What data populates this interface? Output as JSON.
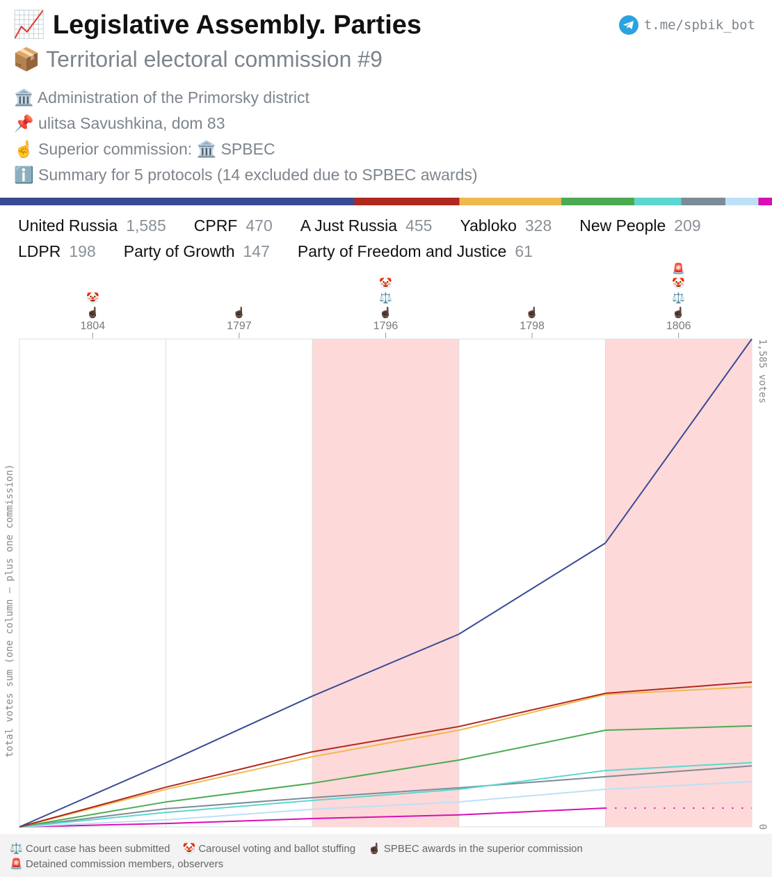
{
  "header": {
    "title_icon": "📈",
    "title": "Legislative Assembly. Parties",
    "subtitle_icon": "📦",
    "subtitle": "Territorial electoral commission #9",
    "bot": "t.me/spbik_bot"
  },
  "info": [
    {
      "icon": "🏛️",
      "text": "Administration of the Primorsky district"
    },
    {
      "icon": "📌",
      "text": "ulitsa Savushkina, dom 83"
    },
    {
      "icon": "☝️",
      "text": "Superior commission: 🏛️ SPBEC"
    },
    {
      "icon": "ℹ️",
      "text": "Summary for 5 protocols (14 excluded due to SPBEC awards)"
    }
  ],
  "chart_data": {
    "type": "line",
    "cumulative": true,
    "ylabel": "total votes sum (one column – plus one commission)",
    "categories": [
      "1804",
      "1797",
      "1796",
      "1798",
      "1806"
    ],
    "highlighted": [
      false,
      false,
      true,
      false,
      true
    ],
    "markers": [
      [
        "🤡",
        "☝🏿"
      ],
      [
        "☝🏿"
      ],
      [
        "🤡",
        "⚖️",
        "☝🏿"
      ],
      [
        "☝🏿"
      ],
      [
        "🚨",
        "🤡",
        "⚖️",
        "☝🏿"
      ]
    ],
    "ylim": [
      0,
      1585
    ],
    "yticks": [
      0,
      {
        "value": 1585,
        "label": "1,585 votes"
      }
    ],
    "series": [
      {
        "name": "United Russia",
        "total_label": "1,585",
        "color": "#3a4a94",
        "values": [
          208,
          217,
          201,
          296,
          663
        ]
      },
      {
        "name": "CPRF",
        "total_label": "470",
        "color": "#b0281e",
        "values": [
          129,
          115,
          82,
          108,
          36
        ]
      },
      {
        "name": "A Just Russia",
        "total_label": "455",
        "color": "#f0b94e",
        "values": [
          122,
          106,
          86,
          116,
          25
        ]
      },
      {
        "name": "Yabloko",
        "total_label": "328",
        "color": "#4caa52",
        "values": [
          81,
          61,
          75,
          97,
          14
        ]
      },
      {
        "name": "New People",
        "total_label": "209",
        "color": "#5dd6cf",
        "values": [
          47,
          39,
          36,
          61,
          26
        ]
      },
      {
        "name": "LDPR",
        "total_label": "198",
        "color": "#7b8c96",
        "values": [
          59,
          36,
          32,
          36,
          35
        ]
      },
      {
        "name": "Party of Growth",
        "total_label": "147",
        "color": "#bde0f7",
        "values": [
          23,
          34,
          24,
          41,
          25
        ]
      },
      {
        "name": "Party of Freedom and Justice",
        "total_label": "61",
        "color": "#d80fb4",
        "values": [
          11,
          16,
          12,
          22,
          null
        ]
      }
    ]
  },
  "footer": [
    {
      "icon": "⚖️",
      "text": "Court case has been submitted"
    },
    {
      "icon": "🤡",
      "text": "Carousel voting and ballot stuffing"
    },
    {
      "icon": "☝🏿",
      "text": "SPBEC awards in the superior commission"
    },
    {
      "icon": "🚨",
      "text": "Detained commission members, observers"
    }
  ]
}
